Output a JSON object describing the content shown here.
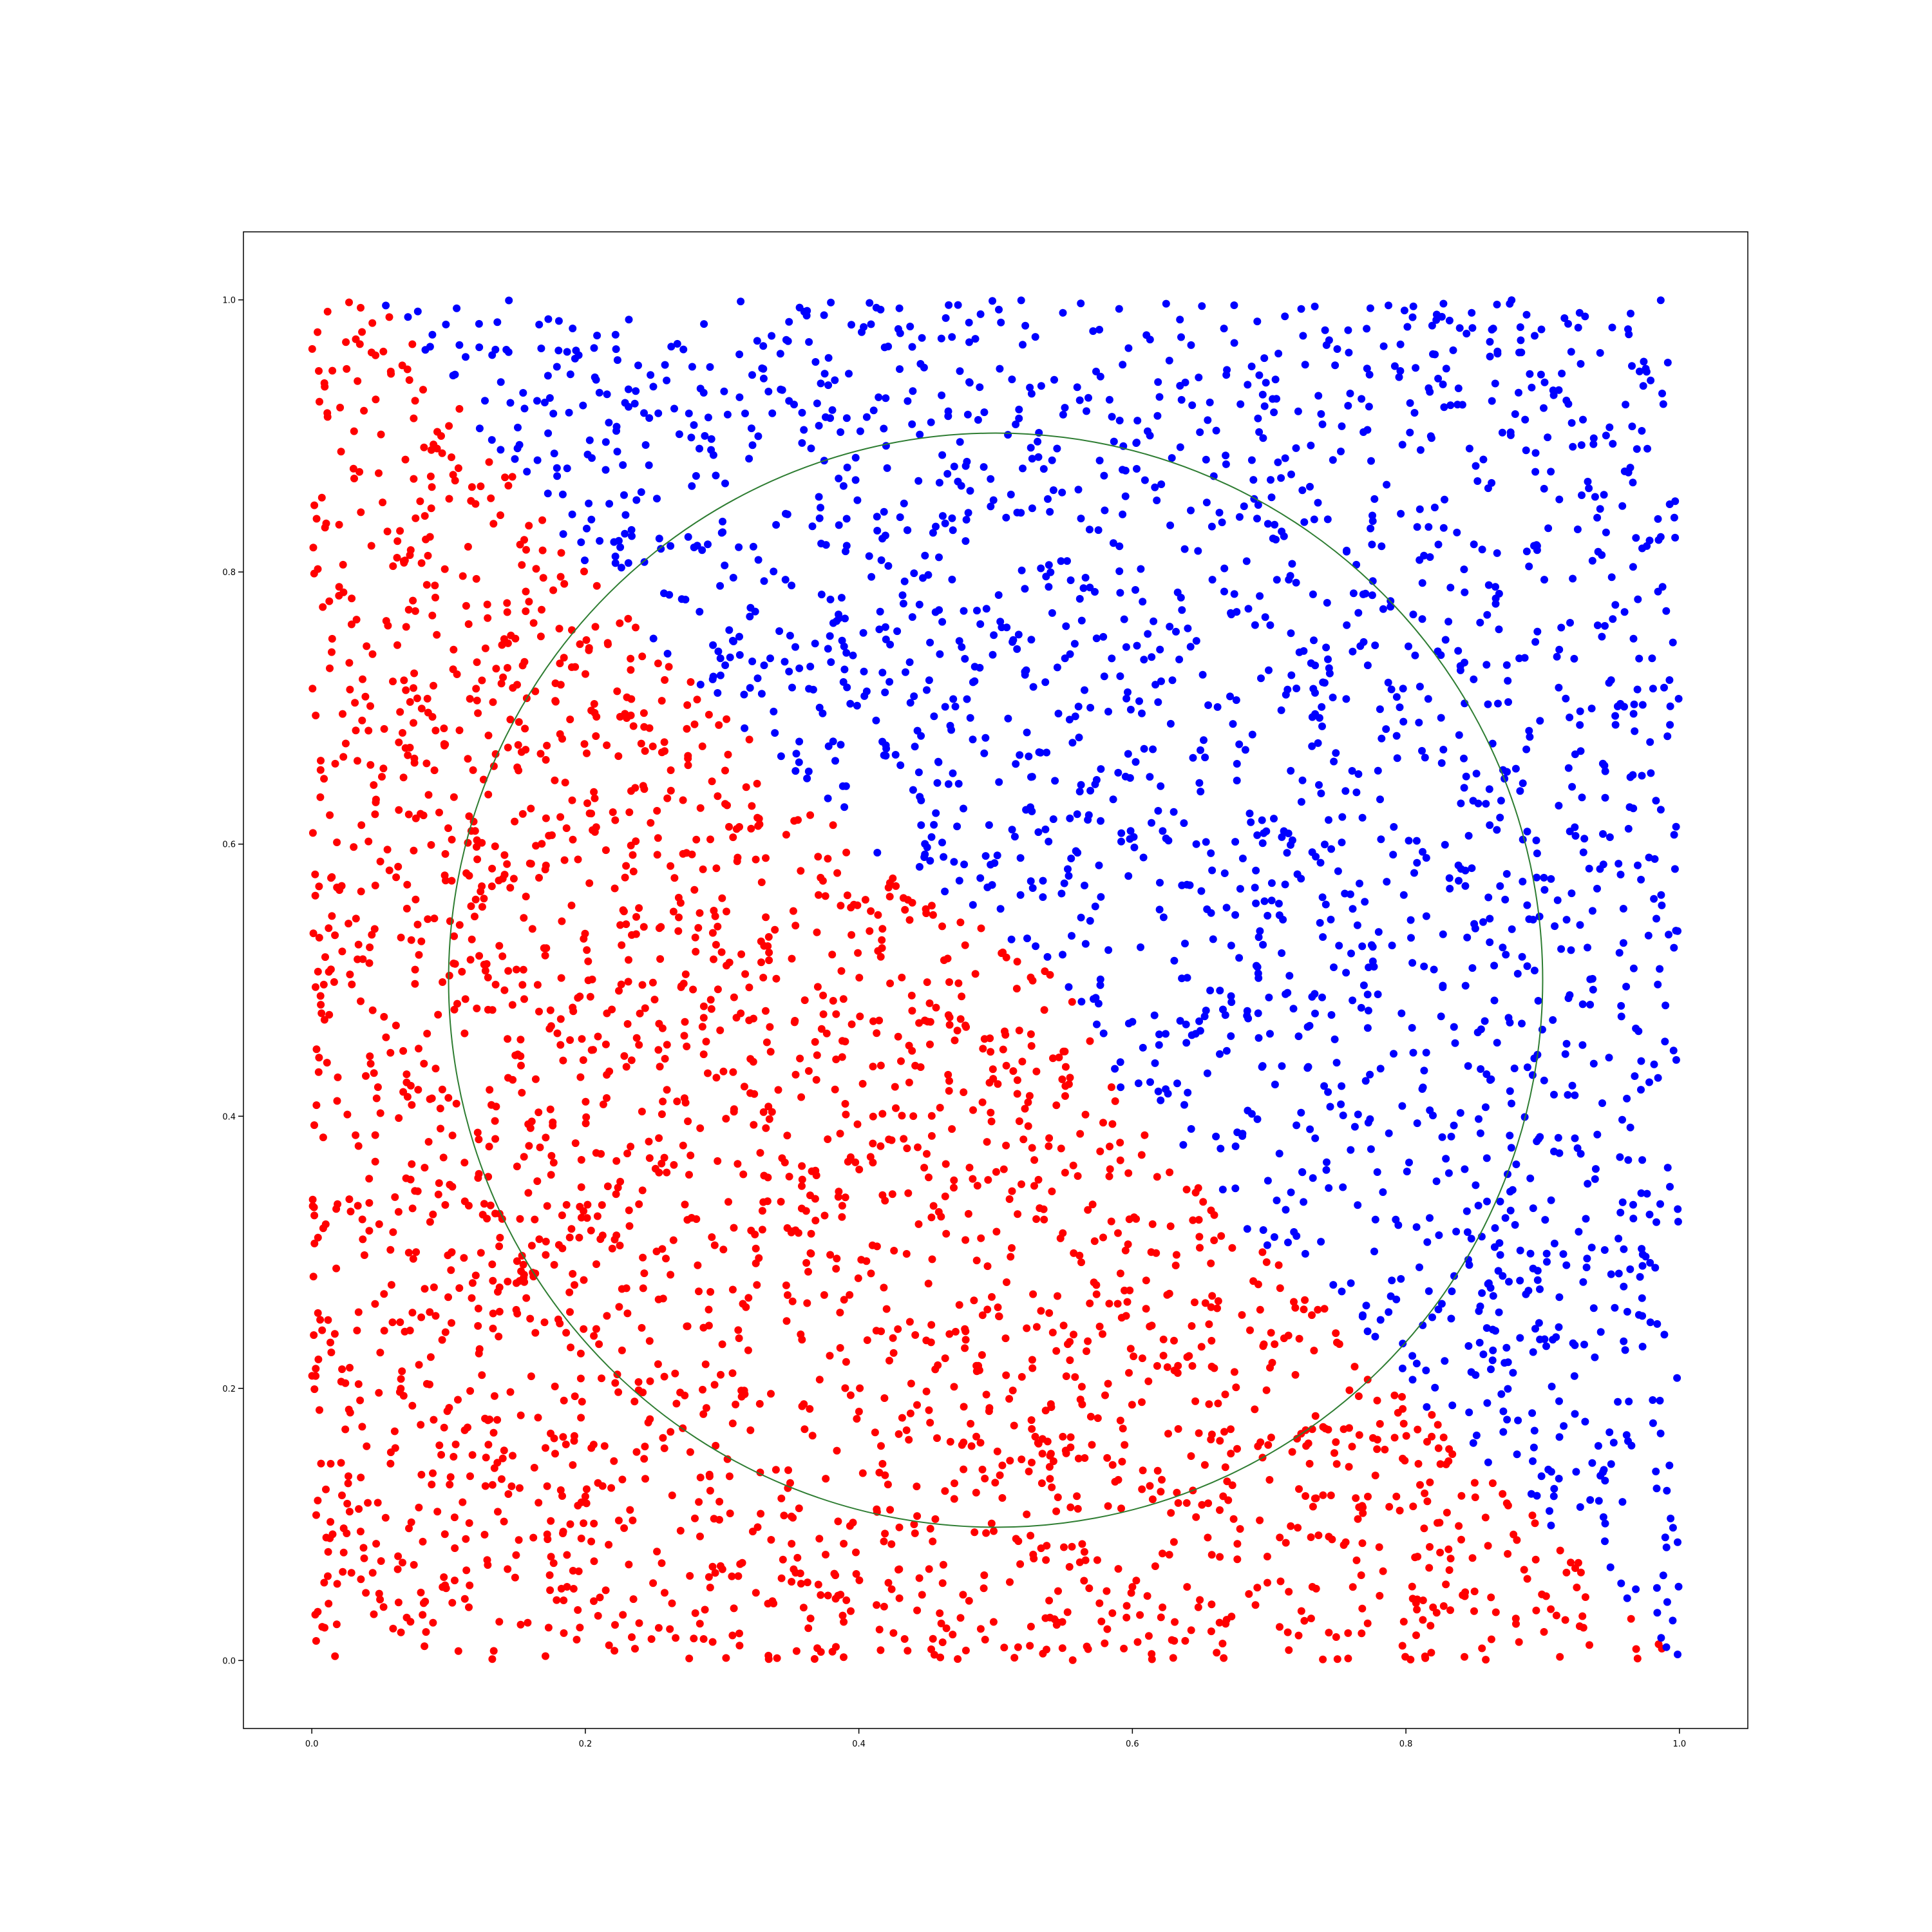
{
  "chart_data": {
    "type": "scatter",
    "title": "",
    "xlabel": "",
    "ylabel": "",
    "xlim": [
      -0.05,
      1.05
    ],
    "ylim": [
      -0.05,
      1.05
    ],
    "x_ticks": [
      "0.0",
      "0.2",
      "0.4",
      "0.6",
      "0.8",
      "1.0"
    ],
    "y_ticks": [
      "0.0",
      "0.2",
      "0.4",
      "0.6",
      "0.8",
      "1.0"
    ],
    "grid": false,
    "legend": "none",
    "series": [
      {
        "color": "#ff0000",
        "marker": "circle",
        "description_of_points": "approx. 2500 uniformly random points in [0,1]x[0,1] lying below/left of the boundary separating regions",
        "n_points": 2500,
        "seed": 7
      },
      {
        "color": "#0000ff",
        "marker": "circle",
        "description_of_points": "approx. 2000 uniformly random points in [0,1]x[0,1] lying above/right of the boundary",
        "n_points": 2000,
        "seed": 11
      }
    ],
    "circle": {
      "center": [
        0.5,
        0.5
      ],
      "radius": 0.4,
      "color": "#2e7d32"
    },
    "boundary": [
      [
        0.05,
        1.0
      ],
      [
        0.2,
        0.8
      ],
      [
        0.3,
        0.7
      ],
      [
        0.4,
        0.6
      ],
      [
        0.55,
        0.5
      ],
      [
        0.6,
        0.4
      ],
      [
        0.7,
        0.3
      ],
      [
        0.8,
        0.2
      ],
      [
        0.95,
        0.05
      ],
      [
        1.0,
        0.0
      ]
    ]
  }
}
